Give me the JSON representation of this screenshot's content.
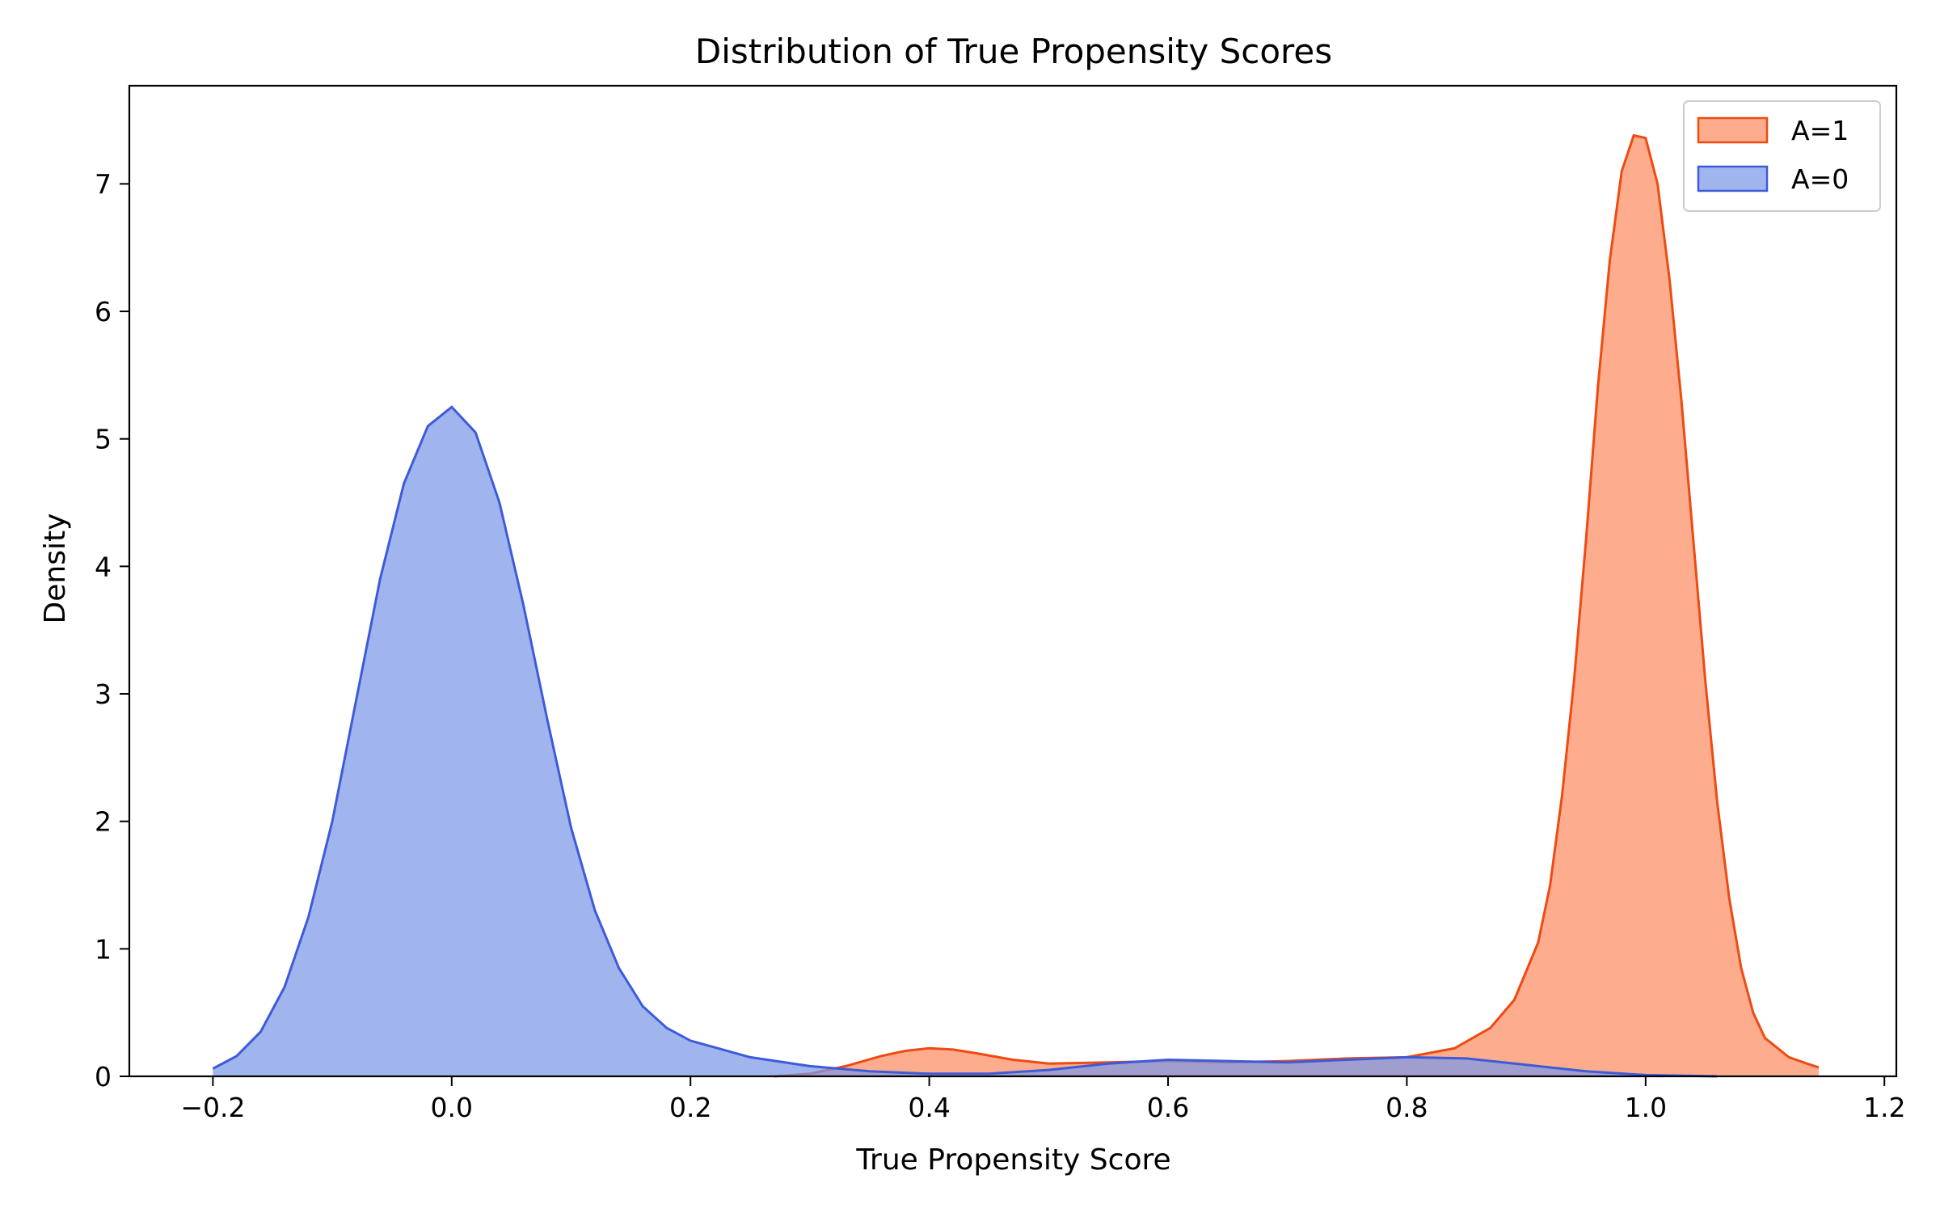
{
  "chart_data": {
    "type": "area",
    "title": "Distribution of True Propensity Scores",
    "xlabel": "True Propensity Score",
    "ylabel": "Density",
    "xlim": [
      -0.27,
      1.21
    ],
    "ylim": [
      0,
      7.77
    ],
    "xticks": [
      -0.2,
      0.0,
      0.2,
      0.4,
      0.6,
      0.8,
      1.0,
      1.2
    ],
    "xtick_labels": [
      "−0.2",
      "0.0",
      "0.2",
      "0.4",
      "0.6",
      "0.8",
      "1.0",
      "1.2"
    ],
    "yticks": [
      0,
      1,
      2,
      3,
      4,
      5,
      6,
      7
    ],
    "ytick_labels": [
      "0",
      "1",
      "2",
      "3",
      "4",
      "5",
      "6",
      "7"
    ],
    "grid": false,
    "legend_position": "top-right",
    "series": [
      {
        "name": "A=1",
        "fill": "#fc8d62",
        "line": "#ee4a12",
        "x": [
          0.27,
          0.3,
          0.33,
          0.36,
          0.38,
          0.4,
          0.42,
          0.44,
          0.47,
          0.5,
          0.55,
          0.6,
          0.65,
          0.7,
          0.75,
          0.8,
          0.84,
          0.87,
          0.89,
          0.91,
          0.92,
          0.93,
          0.94,
          0.95,
          0.96,
          0.97,
          0.98,
          0.99,
          1.0,
          1.01,
          1.02,
          1.03,
          1.04,
          1.05,
          1.06,
          1.07,
          1.08,
          1.09,
          1.1,
          1.12,
          1.135,
          1.145
        ],
        "y": [
          0.0,
          0.02,
          0.08,
          0.16,
          0.2,
          0.22,
          0.21,
          0.18,
          0.13,
          0.1,
          0.11,
          0.12,
          0.11,
          0.12,
          0.14,
          0.15,
          0.22,
          0.38,
          0.6,
          1.05,
          1.5,
          2.2,
          3.1,
          4.2,
          5.4,
          6.4,
          7.1,
          7.38,
          7.36,
          7.0,
          6.25,
          5.3,
          4.2,
          3.1,
          2.15,
          1.4,
          0.85,
          0.5,
          0.3,
          0.15,
          0.1,
          0.07
        ]
      },
      {
        "name": "A=0",
        "fill": "#7b98e8",
        "line": "#3d5bd9",
        "x": [
          -0.2,
          -0.18,
          -0.16,
          -0.14,
          -0.12,
          -0.1,
          -0.08,
          -0.06,
          -0.04,
          -0.02,
          0.0,
          0.02,
          0.04,
          0.06,
          0.08,
          0.1,
          0.12,
          0.14,
          0.16,
          0.18,
          0.2,
          0.25,
          0.3,
          0.35,
          0.4,
          0.45,
          0.5,
          0.55,
          0.6,
          0.65,
          0.7,
          0.75,
          0.8,
          0.85,
          0.9,
          0.95,
          1.0,
          1.06
        ],
        "y": [
          0.06,
          0.16,
          0.35,
          0.7,
          1.25,
          2.0,
          2.95,
          3.9,
          4.65,
          5.1,
          5.25,
          5.05,
          4.5,
          3.7,
          2.8,
          1.95,
          1.3,
          0.85,
          0.55,
          0.38,
          0.28,
          0.15,
          0.08,
          0.04,
          0.02,
          0.02,
          0.05,
          0.1,
          0.13,
          0.12,
          0.11,
          0.13,
          0.15,
          0.14,
          0.09,
          0.04,
          0.01,
          0.0
        ]
      }
    ]
  }
}
